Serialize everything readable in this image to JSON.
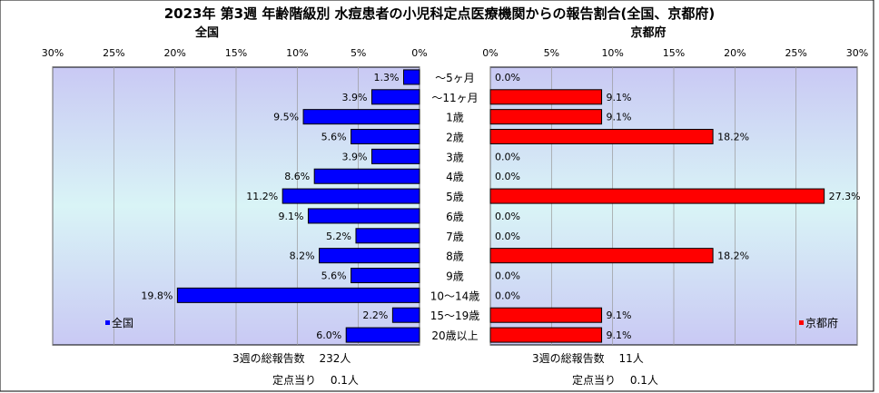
{
  "chart_data": {
    "type": "bar",
    "title": "2023年 第3週 年齢階級別 水痘患者の小児科定点医療機関からの報告割合(全国、京都府)",
    "categories": [
      "～5ヶ月",
      "～11ヶ月",
      "1歳",
      "2歳",
      "3歳",
      "4歳",
      "5歳",
      "6歳",
      "7歳",
      "8歳",
      "9歳",
      "10～14歳",
      "15～19歳",
      "20歳以上"
    ],
    "xlim": [
      0,
      30
    ],
    "ticks": [
      "30%",
      "25%",
      "20%",
      "15%",
      "10%",
      "5%",
      "0%"
    ],
    "ticks_right": [
      "0%",
      "5%",
      "10%",
      "15%",
      "20%",
      "25%",
      "30%"
    ],
    "series": [
      {
        "name": "全国",
        "color": "#0000ff",
        "values": [
          1.3,
          3.9,
          9.5,
          5.6,
          3.9,
          8.6,
          11.2,
          9.1,
          5.2,
          8.2,
          5.6,
          19.8,
          2.2,
          6.0
        ],
        "labels": [
          "1.3%",
          "3.9%",
          "9.5%",
          "5.6%",
          "3.9%",
          "8.6%",
          "11.2%",
          "9.1%",
          "5.2%",
          "8.2%",
          "5.6%",
          "19.8%",
          "2.2%",
          "6.0%"
        ]
      },
      {
        "name": "京都府",
        "color": "#ff0000",
        "values": [
          0.0,
          9.1,
          9.1,
          18.2,
          0.0,
          0.0,
          27.3,
          0.0,
          0.0,
          18.2,
          0.0,
          0.0,
          9.1,
          9.1
        ],
        "labels": [
          "0.0%",
          "9.1%",
          "9.1%",
          "18.2%",
          "0.0%",
          "0.0%",
          "27.3%",
          "0.0%",
          "0.0%",
          "18.2%",
          "0.0%",
          "0.0%",
          "9.1%",
          "9.1%"
        ]
      }
    ],
    "panel_titles": {
      "left": "全国",
      "right": "京都府"
    },
    "legend": {
      "left": "全国",
      "right": "京都府"
    },
    "footer": {
      "left_total": "3週の総報告数　 232人",
      "left_per": "定点当り　 0.1人",
      "right_total": "3週の総報告数　 11人",
      "right_per": "定点当り　 0.1人"
    }
  }
}
